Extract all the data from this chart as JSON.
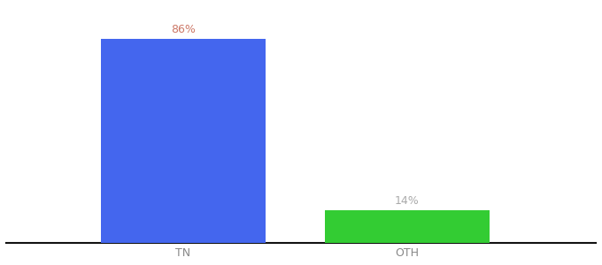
{
  "categories": [
    "TN",
    "OTH"
  ],
  "values": [
    86,
    14
  ],
  "bar_colors": [
    "#4466ee",
    "#33cc33"
  ],
  "label_texts": [
    "86%",
    "14%"
  ],
  "label_color": "#aaaaaa",
  "background_color": "#ffffff",
  "xlabel": "",
  "ylabel": "",
  "ylim": [
    0,
    100
  ],
  "bar_width": 0.28,
  "x_positions": [
    0.3,
    0.68
  ],
  "xlim": [
    0,
    1.0
  ],
  "title_fontsize": 10,
  "tick_fontsize": 9,
  "label_fontsize": 9,
  "label_color_tn": "#cc7766",
  "label_color_oth": "#aaaaaa",
  "axis_line_color": "#111111",
  "tick_color": "#888888"
}
